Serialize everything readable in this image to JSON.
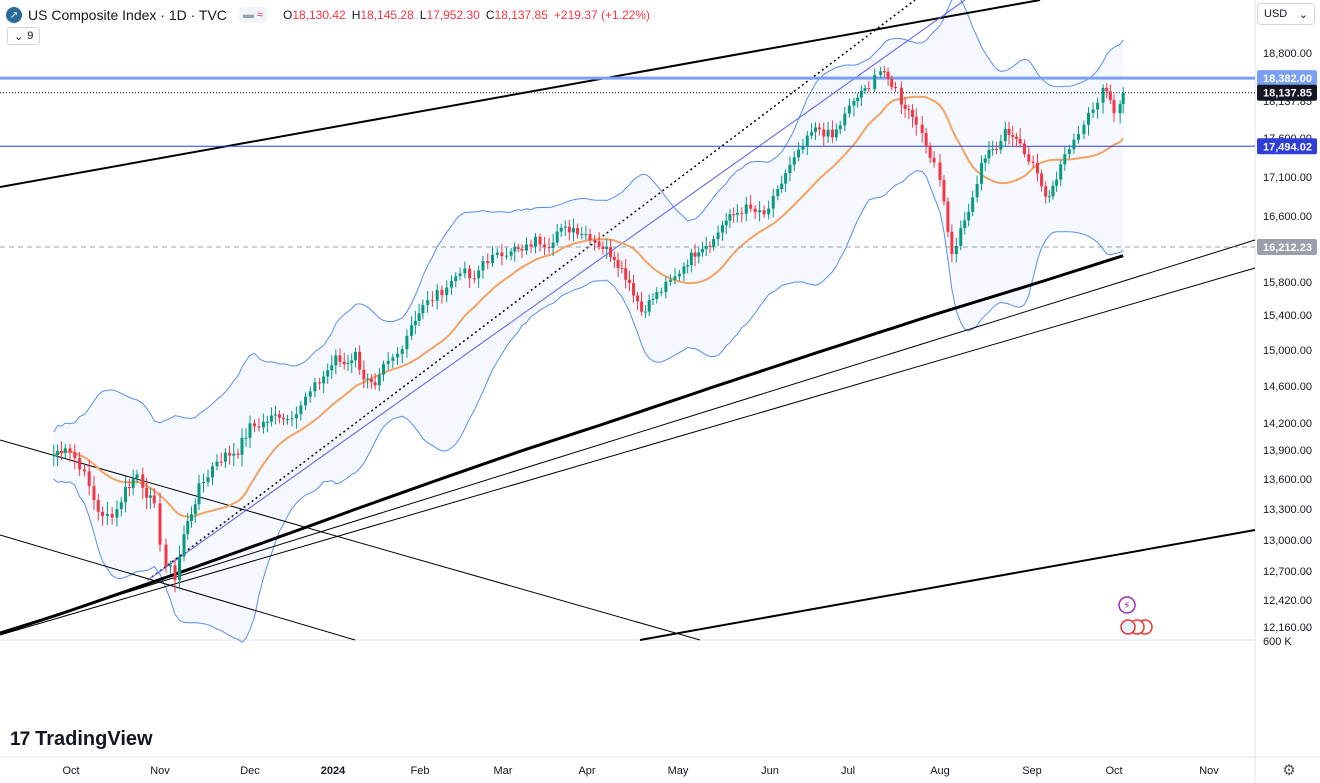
{
  "header": {
    "title": "US Composite Index · 1D · TVC",
    "ohlc": {
      "open_label": "O",
      "open": "18,130.42",
      "high_label": "H",
      "high": "18,145.28",
      "low_label": "L",
      "low": "17,952.30",
      "close_label": "C",
      "close": "18,137.85",
      "change": "+219.37 (+1.22%)"
    },
    "indicator_count": "9"
  },
  "currency": "USD",
  "brand": "TradingView",
  "colors": {
    "up": "#089981",
    "down": "#f23645",
    "ma": "#f4a261",
    "band": "#5b8def",
    "blue_level": "#2f3ed6",
    "light_blue_level": "#7aa0f5",
    "current_price_tag": "#131722",
    "trend": "#000000"
  },
  "chart_data": {
    "type": "candlestick",
    "title": "US Composite Index · 1D · TVC",
    "ylim": [
      12000,
      19300
    ],
    "y_ticks": [
      12160,
      12420,
      12700,
      13000,
      13300,
      13600,
      13900,
      14200,
      14600,
      15000,
      15400,
      15800,
      16200,
      16600,
      17100,
      17600,
      18000,
      18800
    ],
    "y_tick_labels": [
      "12,160.00",
      "12,420.00",
      "12,700.00",
      "13,000.00",
      "13,300.00",
      "13,600.00",
      "13,900.00",
      "14,200.00",
      "14,600.00",
      "15,000.00",
      "15,400.00",
      "15,800.00",
      "16,212.23",
      "16,600.00",
      "17,100.00",
      "17,600.00",
      "18,137.85",
      "18,800.00"
    ],
    "x_labels": [
      "Oct",
      "Nov",
      "Dec",
      "2024",
      "Feb",
      "Mar",
      "Apr",
      "May",
      "Jun",
      "Jul",
      "Aug",
      "Sep",
      "Oct",
      "Nov"
    ],
    "x_label_dates": [
      "2023-10-01",
      "2023-11-01",
      "2023-12-01",
      "2024-01-01",
      "2024-02-01",
      "2024-03-01",
      "2024-04-01",
      "2024-05-01",
      "2024-06-01",
      "2024-07-01",
      "2024-08-01",
      "2024-09-01",
      "2024-10-01",
      "2024-11-01"
    ],
    "volume_label": "600 K",
    "price_levels": [
      {
        "label": "18,382.00",
        "value": 18382,
        "color": "#7aa0f5",
        "thick": true
      },
      {
        "label": "18,137.85",
        "value": 18137.85,
        "color": "#131722",
        "dotted": true,
        "current": true
      },
      {
        "label": "17,494.02",
        "value": 17494.02,
        "color": "#2f3ed6"
      },
      {
        "label": "16,212.23",
        "value": 16212.23,
        "color": "#9aa0ab",
        "dashed": true
      }
    ],
    "closes": [
      {
        "d": "2023-09-25",
        "c": 13850
      },
      {
        "d": "2023-09-29",
        "c": 13950
      },
      {
        "d": "2023-10-04",
        "c": 13750
      },
      {
        "d": "2023-10-09",
        "c": 13400
      },
      {
        "d": "2023-10-12",
        "c": 13200
      },
      {
        "d": "2023-10-17",
        "c": 13300
      },
      {
        "d": "2023-10-20",
        "c": 13500
      },
      {
        "d": "2023-10-24",
        "c": 13650
      },
      {
        "d": "2023-10-26",
        "c": 13550
      },
      {
        "d": "2023-10-30",
        "c": 13300
      },
      {
        "d": "2023-11-01",
        "c": 13000
      },
      {
        "d": "2023-11-03",
        "c": 12750
      },
      {
        "d": "2023-11-06",
        "c": 12650
      },
      {
        "d": "2023-11-09",
        "c": 13050
      },
      {
        "d": "2023-11-14",
        "c": 13500
      },
      {
        "d": "2023-11-20",
        "c": 13800
      },
      {
        "d": "2023-11-27",
        "c": 13900
      },
      {
        "d": "2023-12-01",
        "c": 14150
      },
      {
        "d": "2023-12-06",
        "c": 14200
      },
      {
        "d": "2023-12-12",
        "c": 14300
      },
      {
        "d": "2023-12-15",
        "c": 14250
      },
      {
        "d": "2023-12-20",
        "c": 14400
      },
      {
        "d": "2023-12-27",
        "c": 14650
      },
      {
        "d": "2024-01-02",
        "c": 14900
      },
      {
        "d": "2024-01-05",
        "c": 14850
      },
      {
        "d": "2024-01-09",
        "c": 14950
      },
      {
        "d": "2024-01-12",
        "c": 14700
      },
      {
        "d": "2024-01-16",
        "c": 14550
      },
      {
        "d": "2024-01-19",
        "c": 14800
      },
      {
        "d": "2024-01-24",
        "c": 14950
      },
      {
        "d": "2024-01-29",
        "c": 15300
      },
      {
        "d": "2024-02-02",
        "c": 15500
      },
      {
        "d": "2024-02-07",
        "c": 15650
      },
      {
        "d": "2024-02-12",
        "c": 15800
      },
      {
        "d": "2024-02-15",
        "c": 15950
      },
      {
        "d": "2024-02-20",
        "c": 15800
      },
      {
        "d": "2024-02-23",
        "c": 16050
      },
      {
        "d": "2024-02-28",
        "c": 16100
      },
      {
        "d": "2024-03-04",
        "c": 16200
      },
      {
        "d": "2024-03-08",
        "c": 16150
      },
      {
        "d": "2024-03-13",
        "c": 16300
      },
      {
        "d": "2024-03-18",
        "c": 16250
      },
      {
        "d": "2024-03-21",
        "c": 16400
      },
      {
        "d": "2024-03-27",
        "c": 16450
      },
      {
        "d": "2024-04-02",
        "c": 16350
      },
      {
        "d": "2024-04-05",
        "c": 16250
      },
      {
        "d": "2024-04-10",
        "c": 16100
      },
      {
        "d": "2024-04-15",
        "c": 15800
      },
      {
        "d": "2024-04-19",
        "c": 15450
      },
      {
        "d": "2024-04-24",
        "c": 15650
      },
      {
        "d": "2024-04-30",
        "c": 15850
      },
      {
        "d": "2024-05-03",
        "c": 16000
      },
      {
        "d": "2024-05-08",
        "c": 16200
      },
      {
        "d": "2024-05-13",
        "c": 16300
      },
      {
        "d": "2024-05-16",
        "c": 16500
      },
      {
        "d": "2024-05-21",
        "c": 16650
      },
      {
        "d": "2024-05-24",
        "c": 16700
      },
      {
        "d": "2024-05-30",
        "c": 16600
      },
      {
        "d": "2024-06-04",
        "c": 16900
      },
      {
        "d": "2024-06-07",
        "c": 17150
      },
      {
        "d": "2024-06-12",
        "c": 17400
      },
      {
        "d": "2024-06-17",
        "c": 17650
      },
      {
        "d": "2024-06-20",
        "c": 17700
      },
      {
        "d": "2024-06-25",
        "c": 17600
      },
      {
        "d": "2024-06-28",
        "c": 17750
      },
      {
        "d": "2024-07-03",
        "c": 18000
      },
      {
        "d": "2024-07-08",
        "c": 18250
      },
      {
        "d": "2024-07-10",
        "c": 18450
      },
      {
        "d": "2024-07-12",
        "c": 18500
      },
      {
        "d": "2024-07-17",
        "c": 18200
      },
      {
        "d": "2024-07-19",
        "c": 18000
      },
      {
        "d": "2024-07-24",
        "c": 17800
      },
      {
        "d": "2024-07-26",
        "c": 17600
      },
      {
        "d": "2024-07-30",
        "c": 17300
      },
      {
        "d": "2024-08-01",
        "c": 17100
      },
      {
        "d": "2024-08-05",
        "c": 16100
      },
      {
        "d": "2024-08-08",
        "c": 16400
      },
      {
        "d": "2024-08-12",
        "c": 16800
      },
      {
        "d": "2024-08-15",
        "c": 17300
      },
      {
        "d": "2024-08-20",
        "c": 17500
      },
      {
        "d": "2024-08-23",
        "c": 17700
      },
      {
        "d": "2024-08-28",
        "c": 17550
      },
      {
        "d": "2024-09-03",
        "c": 17150
      },
      {
        "d": "2024-09-06",
        "c": 16800
      },
      {
        "d": "2024-09-10",
        "c": 17100
      },
      {
        "d": "2024-09-13",
        "c": 17450
      },
      {
        "d": "2024-09-18",
        "c": 17600
      },
      {
        "d": "2024-09-20",
        "c": 17800
      },
      {
        "d": "2024-09-25",
        "c": 18000
      },
      {
        "d": "2024-09-27",
        "c": 18250
      },
      {
        "d": "2024-10-01",
        "c": 17900
      },
      {
        "d": "2024-10-03",
        "c": 17950
      },
      {
        "d": "2024-10-04",
        "c": 18137.85
      }
    ]
  }
}
